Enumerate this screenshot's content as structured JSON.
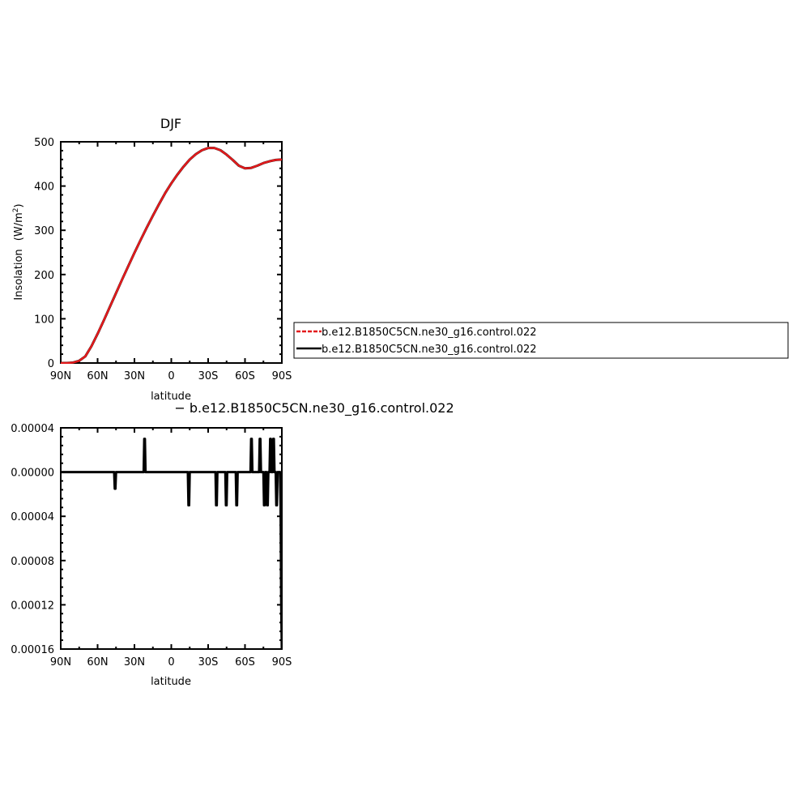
{
  "chart_data": [
    {
      "type": "line",
      "title": "DJF",
      "xlabel": "latitude",
      "ylabel_main": "Insolation",
      "ylabel_units": "(W/m",
      "ylabel_sup": "2",
      "ylabel_close": ")",
      "xlim": [
        90,
        -90
      ],
      "ylim": [
        0,
        500
      ],
      "x_ticks": [
        {
          "value": 90,
          "label": "90N"
        },
        {
          "value": 60,
          "label": "60N"
        },
        {
          "value": 30,
          "label": "30N"
        },
        {
          "value": 0,
          "label": "0"
        },
        {
          "value": -30,
          "label": "30S"
        },
        {
          "value": -60,
          "label": "60S"
        },
        {
          "value": -90,
          "label": "90S"
        }
      ],
      "y_ticks": [
        {
          "value": 0,
          "label": "0"
        },
        {
          "value": 100,
          "label": "100"
        },
        {
          "value": 200,
          "label": "200"
        },
        {
          "value": 300,
          "label": "300"
        },
        {
          "value": 400,
          "label": "400"
        },
        {
          "value": 500,
          "label": "500"
        }
      ],
      "x": [
        90,
        85,
        80,
        75,
        70,
        65,
        60,
        55,
        50,
        45,
        40,
        35,
        30,
        25,
        20,
        15,
        10,
        5,
        0,
        -5,
        -10,
        -15,
        -20,
        -25,
        -30,
        -35,
        -40,
        -45,
        -50,
        -55,
        -60,
        -65,
        -70,
        -75,
        -80,
        -85,
        -90
      ],
      "series": [
        {
          "name": "b.e12.B1850C5CN.ne30_g16.control.022",
          "color": "#000000",
          "style": "solid",
          "values": [
            0,
            0,
            1,
            5,
            15,
            38,
            66,
            96,
            127,
            158,
            189,
            219,
            249,
            278,
            306,
            333,
            359,
            384,
            406,
            426,
            444,
            460,
            472,
            481,
            486,
            486,
            481,
            471,
            459,
            446,
            440,
            441,
            446,
            452,
            456,
            459,
            460
          ]
        },
        {
          "name": "b.e12.B1850C5CN.ne30_g16.control.022",
          "color": "#e31a1c",
          "style": "dashed",
          "values": [
            0,
            0,
            1,
            5,
            15,
            38,
            66,
            96,
            127,
            158,
            189,
            219,
            249,
            278,
            306,
            333,
            359,
            384,
            406,
            426,
            444,
            460,
            472,
            481,
            486,
            486,
            481,
            471,
            459,
            446,
            440,
            441,
            446,
            452,
            456,
            459,
            460
          ]
        }
      ],
      "legend": {
        "placement": "right",
        "entries": [
          {
            "label": "b.e12.B1850C5CN.ne30_g16.control.022",
            "color": "#e31a1c",
            "style": "dashed"
          },
          {
            "label": "b.e12.B1850C5CN.ne30_g16.control.022",
            "color": "#000000",
            "style": "solid"
          }
        ]
      }
    },
    {
      "type": "line",
      "title": "− b.e12.B1850C5CN.ne30_g16.control.022",
      "xlabel": "latitude",
      "xlim": [
        90,
        -90
      ],
      "ylim": [
        -0.00016,
        4e-05
      ],
      "x_ticks": [
        {
          "value": 90,
          "label": "90N"
        },
        {
          "value": 60,
          "label": "60N"
        },
        {
          "value": 30,
          "label": "30N"
        },
        {
          "value": 0,
          "label": "0"
        },
        {
          "value": -30,
          "label": "30S"
        },
        {
          "value": -60,
          "label": "60S"
        },
        {
          "value": -90,
          "label": "90S"
        }
      ],
      "y_ticks": [
        {
          "value": 4e-05,
          "label": "0.00004"
        },
        {
          "value": 0,
          "label": "0.00000"
        },
        {
          "value": -4e-05,
          "label": "0.00004"
        },
        {
          "value": -8e-05,
          "label": "0.00008"
        },
        {
          "value": -0.00012,
          "label": "0.00012"
        },
        {
          "value": -0.00016,
          "label": "0.00016"
        }
      ],
      "series": [
        {
          "color": "#000000",
          "x": [
            90,
            46.5,
            46,
            45.5,
            45,
            22.5,
            22,
            21.5,
            21,
            1,
            -13.5,
            -14,
            -14.5,
            -15,
            -36,
            -36.5,
            -37,
            -37.5,
            -44,
            -44.5,
            -45,
            -45.5,
            -52.5,
            -53,
            -53.5,
            -54,
            -64.5,
            -65,
            -65.5,
            -66,
            -71.5,
            -72,
            -72.5,
            -73,
            -75,
            -75.5,
            -76,
            -76.5,
            -77.5,
            -78,
            -78.5,
            -79,
            -80,
            -80.5,
            -81,
            -81.5,
            -82.5,
            -83,
            -83.5,
            -84,
            -85,
            -85.5,
            -86,
            -86.5,
            -88,
            -88.5,
            -89,
            -89.5,
            -90
          ],
          "values": [
            0,
            0,
            -1.5e-05,
            -1.5e-05,
            0,
            0,
            3e-05,
            3e-05,
            0,
            0,
            0,
            -3e-05,
            -3e-05,
            0,
            0,
            -3e-05,
            -3e-05,
            0,
            0,
            -3e-05,
            -3e-05,
            0,
            0,
            -3e-05,
            -3e-05,
            0,
            0,
            3e-05,
            3e-05,
            0,
            0,
            3e-05,
            3e-05,
            0,
            0,
            -3e-05,
            -3e-05,
            0,
            0,
            -3e-05,
            -3e-05,
            0,
            0,
            3e-05,
            3e-05,
            0,
            0,
            3e-05,
            3e-05,
            0,
            0,
            -3e-05,
            -3e-05,
            0,
            0,
            0,
            -3e-05,
            -0.00012,
            -0.00016
          ]
        }
      ]
    }
  ]
}
